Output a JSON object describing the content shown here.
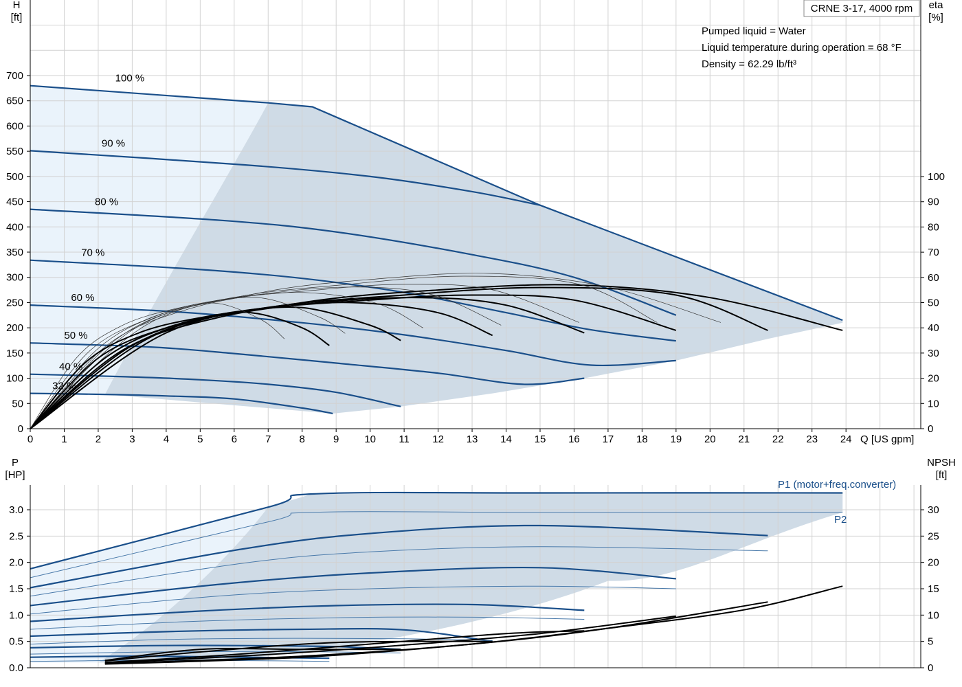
{
  "chart_data": [
    {
      "type": "line",
      "title": "CRNE 3-17, 4000 rpm",
      "notes": [
        "Pumped liquid = Water",
        "Liquid temperature during operation = 68 °F",
        "Density = 62.29 lb/ft³"
      ],
      "xlabel": "Q [US gpm]",
      "ylabel_left": "H\n[ft]",
      "ylabel_right": "eta\n[%]",
      "xlim": [
        0,
        26.2
      ],
      "ylim_left": [
        0,
        800
      ],
      "ylim_right": [
        0,
        100
      ],
      "xticks": [
        "0",
        "1",
        "2",
        "3",
        "4",
        "5",
        "6",
        "7",
        "8",
        "9",
        "10",
        "11",
        "12",
        "13",
        "14",
        "15",
        "16",
        "17",
        "18",
        "19",
        "20",
        "21",
        "22",
        "23",
        "24"
      ],
      "yticks_left": [
        "0",
        "50",
        "100",
        "150",
        "200",
        "250",
        "300",
        "350",
        "400",
        "450",
        "500",
        "550",
        "600",
        "650",
        "700"
      ],
      "yticks_right": [
        "0",
        "10",
        "20",
        "30",
        "40",
        "50",
        "60",
        "70",
        "80",
        "90",
        "100"
      ],
      "grid": true,
      "colors": {
        "curve": "#1a4f8a",
        "thin": "#4a7aaa",
        "envelope": "#cfdbe6",
        "light_region": "#eaf3fb",
        "eta": "#000000"
      },
      "speed_labels": [
        "100 %",
        "90 %",
        "80 %",
        "70 %",
        "60 %",
        "50 %",
        "40 %",
        "32 %"
      ],
      "head_curves": [
        {
          "name": "100 %",
          "x": [
            0,
            7,
            8.3,
            15,
            23.9
          ],
          "y": [
            680,
            646,
            638,
            443,
            215
          ]
        },
        {
          "name": "90 %",
          "x": [
            0,
            6.3,
            10,
            13,
            15
          ],
          "y": [
            551,
            523,
            500,
            470,
            443
          ]
        },
        {
          "name": "80 %",
          "x": [
            0,
            5.6,
            9,
            13,
            16,
            19
          ],
          "y": [
            435,
            413,
            390,
            345,
            300,
            225
          ]
        },
        {
          "name": "70 %",
          "x": [
            0,
            4.9,
            8,
            11,
            14,
            16.5,
            19
          ],
          "y": [
            334,
            316,
            298,
            270,
            230,
            196,
            174
          ]
        },
        {
          "name": "60 %",
          "x": [
            0,
            4.2,
            8,
            11,
            14,
            16.5,
            19
          ],
          "y": [
            245,
            232,
            210,
            186,
            155,
            126,
            135
          ]
        },
        {
          "name": "50 %",
          "x": [
            0,
            3.5,
            6,
            9,
            12,
            14.5,
            16.3
          ],
          "y": [
            170,
            162,
            149,
            130,
            110,
            88,
            100
          ]
        },
        {
          "name": "40 %",
          "x": [
            0,
            2.8,
            5,
            7,
            9,
            10.9
          ],
          "y": [
            108,
            103,
            97,
            88,
            72,
            44
          ]
        },
        {
          "name": "32 %",
          "x": [
            0,
            2.2,
            4,
            6,
            8,
            8.9
          ],
          "y": [
            70,
            68,
            65,
            59,
            41,
            30
          ]
        }
      ],
      "eta_curves": [
        {
          "speed": "100 %",
          "x": [
            0,
            4,
            8,
            12,
            16,
            20,
            23.9
          ],
          "y": [
            0,
            38,
            50,
            55,
            57,
            52,
            39
          ]
        },
        {
          "speed": "90 %",
          "x": [
            0,
            3.5,
            7,
            11,
            15,
            19,
            21.7
          ],
          "y": [
            0,
            36,
            48,
            53,
            56,
            53,
            39
          ]
        },
        {
          "speed": "80 %",
          "x": [
            0,
            3,
            6,
            10,
            13,
            16,
            19
          ],
          "y": [
            0,
            33,
            46,
            51,
            53,
            51,
            39
          ]
        },
        {
          "speed": "70 %",
          "x": [
            0,
            2.7,
            5.5,
            8.5,
            11.5,
            14,
            16.3
          ],
          "y": [
            0,
            31,
            44,
            50,
            52,
            49,
            38
          ]
        },
        {
          "speed": "60 %",
          "x": [
            0,
            2.3,
            4.5,
            7,
            9.5,
            12,
            13.6
          ],
          "y": [
            0,
            29,
            42,
            48,
            50,
            46,
            37
          ]
        },
        {
          "speed": "50 %",
          "x": [
            0,
            2,
            4,
            6,
            8,
            10,
            10.9
          ],
          "y": [
            0,
            28,
            40,
            46,
            48,
            41,
            35
          ]
        },
        {
          "speed": "40 %",
          "x": [
            0,
            1.6,
            3.2,
            5,
            6.5,
            8,
            8.8
          ],
          "y": [
            0,
            26,
            38,
            44,
            46,
            40,
            33
          ]
        }
      ]
    },
    {
      "type": "line",
      "xlabel": "Q [US gpm]",
      "ylabel_left": "P\n[HP]",
      "ylabel_right": "NPSH\n[ft]",
      "xlim": [
        0,
        26.2
      ],
      "ylim_left": [
        0,
        3.5
      ],
      "ylim_right": [
        0,
        35
      ],
      "yticks_left": [
        "0.0",
        "0.5",
        "1.0",
        "1.5",
        "2.0",
        "2.5",
        "3.0"
      ],
      "yticks_right": [
        "0",
        "5",
        "10",
        "15",
        "20",
        "25",
        "30"
      ],
      "grid": true,
      "series_labels": [
        "P1 (motor+freq.converter)",
        "P2"
      ],
      "p1_curves": [
        {
          "speed": "100 %",
          "x": [
            0,
            7,
            8.3,
            15,
            23.9
          ],
          "y": [
            1.88,
            3.05,
            3.3,
            3.32,
            3.32
          ]
        },
        {
          "speed": "90 %",
          "x": [
            0,
            6.2,
            10,
            15,
            21.7
          ],
          "y": [
            1.52,
            2.25,
            2.55,
            2.7,
            2.51
          ]
        },
        {
          "speed": "80 %",
          "x": [
            0,
            5.5,
            10,
            15,
            19
          ],
          "y": [
            1.18,
            1.58,
            1.8,
            1.9,
            1.69
          ]
        },
        {
          "speed": "70 %",
          "x": [
            0,
            4.8,
            9,
            13,
            16.3
          ],
          "y": [
            0.88,
            1.07,
            1.18,
            1.2,
            1.09
          ]
        },
        {
          "speed": "60 %",
          "x": [
            0,
            4.2,
            8,
            11,
            13.6
          ],
          "y": [
            0.6,
            0.69,
            0.73,
            0.72,
            0.5
          ]
        },
        {
          "speed": "50 %",
          "x": [
            0,
            3.5,
            6.5,
            9,
            10.9
          ],
          "y": [
            0.38,
            0.42,
            0.42,
            0.4,
            0.35
          ]
        },
        {
          "speed": "40 %",
          "x": [
            0,
            2.8,
            5,
            7.5,
            8.8
          ],
          "y": [
            0.2,
            0.22,
            0.21,
            0.19,
            0.18
          ]
        }
      ],
      "p2_curves": [
        {
          "speed": "100 %",
          "x": [
            0,
            7,
            8.3,
            15,
            23.9
          ],
          "y": [
            1.71,
            2.77,
            2.95,
            2.95,
            2.95
          ]
        },
        {
          "speed": "90 %",
          "x": [
            0,
            6.2,
            10,
            15,
            21.7
          ],
          "y": [
            1.36,
            1.98,
            2.2,
            2.3,
            2.22
          ]
        },
        {
          "speed": "80 %",
          "x": [
            0,
            5.5,
            10,
            15,
            19
          ],
          "y": [
            1.02,
            1.36,
            1.5,
            1.55,
            1.5
          ]
        },
        {
          "speed": "70 %",
          "x": [
            0,
            4.8,
            9,
            13,
            16.3
          ],
          "y": [
            0.73,
            0.88,
            0.95,
            0.96,
            0.92
          ]
        },
        {
          "speed": "60 %",
          "x": [
            0,
            4.2,
            8,
            11,
            13.6
          ],
          "y": [
            0.45,
            0.54,
            0.56,
            0.55,
            0.52
          ]
        },
        {
          "speed": "50 %",
          "x": [
            0,
            3.5,
            6.5,
            9,
            10.9
          ],
          "y": [
            0.26,
            0.3,
            0.31,
            0.3,
            0.28
          ]
        },
        {
          "speed": "40 %",
          "x": [
            0,
            2.8,
            5,
            7.5,
            8.8
          ],
          "y": [
            0.12,
            0.14,
            0.14,
            0.13,
            0.12
          ]
        }
      ],
      "npsh_curves": [
        {
          "speed": "100 %",
          "x": [
            2.2,
            8,
            13,
            17,
            21,
            23.9
          ],
          "y": [
            0.7,
            2,
            4.5,
            7.5,
            11,
            15.5
          ]
        },
        {
          "speed": "90 %",
          "x": [
            2.2,
            8,
            13,
            17,
            21.7
          ],
          "y": [
            0.8,
            2.2,
            4.5,
            7.5,
            12.5
          ]
        },
        {
          "speed": "80 %",
          "x": [
            2.2,
            7,
            11,
            15,
            19
          ],
          "y": [
            0.9,
            2.5,
            4.3,
            6.5,
            9.8
          ]
        },
        {
          "speed": "70 %",
          "x": [
            2.2,
            6,
            10,
            14,
            16.3
          ],
          "y": [
            1,
            2.5,
            4.5,
            6.5,
            7
          ]
        },
        {
          "speed": "60 %",
          "x": [
            2.2,
            5,
            9,
            13.6
          ],
          "y": [
            1.3,
            3,
            4.8,
            5
          ]
        },
        {
          "speed": "50 %",
          "x": [
            2.2,
            5,
            8,
            10.9
          ],
          "y": [
            1.4,
            3.5,
            3.5,
            3.5
          ]
        }
      ]
    }
  ]
}
